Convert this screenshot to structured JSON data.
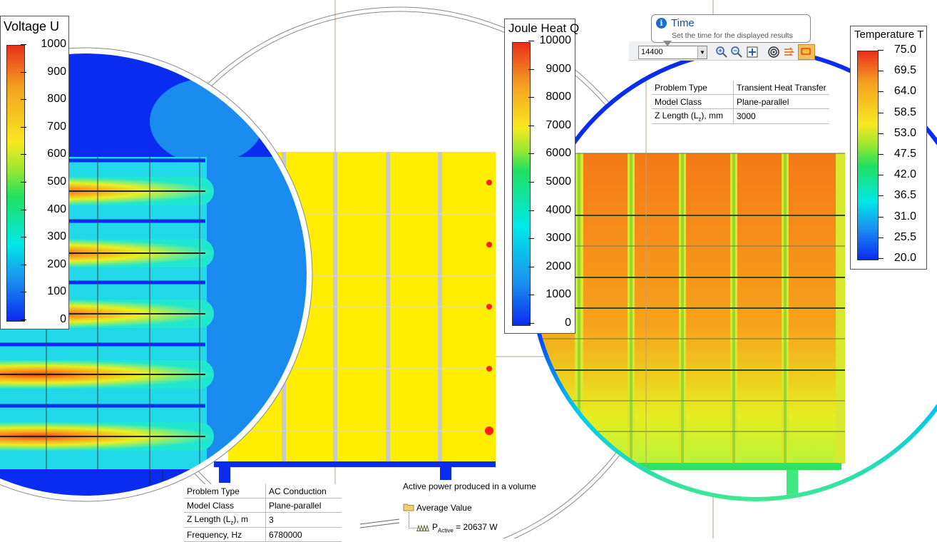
{
  "voltage_legend": {
    "title": "Voltage U",
    "ticks": [
      "1000",
      "900",
      "800",
      "700",
      "600",
      "500",
      "400",
      "300",
      "200",
      "100",
      "0"
    ]
  },
  "joule_legend": {
    "title": "Joule Heat Q",
    "ticks": [
      "10000",
      "9000",
      "8000",
      "7000",
      "6000",
      "5000",
      "4000",
      "3000",
      "2000",
      "1000",
      "0"
    ]
  },
  "temperature_legend": {
    "title": "Temperature T",
    "ticks": [
      "75.0",
      "69.5",
      "64.0",
      "58.5",
      "53.0",
      "47.5",
      "42.0",
      "36.5",
      "31.0",
      "25.5",
      "20.0"
    ]
  },
  "tooltip": {
    "title": "Time",
    "text": "Set the time for the displayed results"
  },
  "toolbar": {
    "time_value": "14400",
    "icons": [
      "zoom-in-icon",
      "zoom-out-icon",
      "zoom-fit-icon",
      "target-icon",
      "flow-icon",
      "heatmap-icon"
    ]
  },
  "heat_problem": {
    "rows": [
      {
        "key": "Problem Type",
        "value": "Transient Heat Transfer"
      },
      {
        "key": "Model Class",
        "value": "Plane-parallel"
      },
      {
        "key": "Z Length (L",
        "sub": "z",
        "key_tail": "), mm",
        "value": "3000"
      }
    ]
  },
  "ac_problem": {
    "rows": [
      {
        "key": "Problem Type",
        "value": "AC Conduction"
      },
      {
        "key": "Model Class",
        "value": "Plane-parallel"
      },
      {
        "key": "Z Length (L",
        "sub": "z",
        "key_tail": "), m",
        "value": "3"
      },
      {
        "key": "Frequency, Hz",
        "value": "6780000"
      }
    ]
  },
  "power": {
    "title": "Active power produced in a volume",
    "folder_label": "Average Value",
    "symbol": "P",
    "sub": "Active",
    "value_text": "= 20637 W"
  },
  "colors": {
    "blue": "#0a2bf0",
    "yellow": "#ffee00",
    "orange": "#f57d14",
    "green": "#16e05a",
    "cyan": "#00e8e8"
  }
}
